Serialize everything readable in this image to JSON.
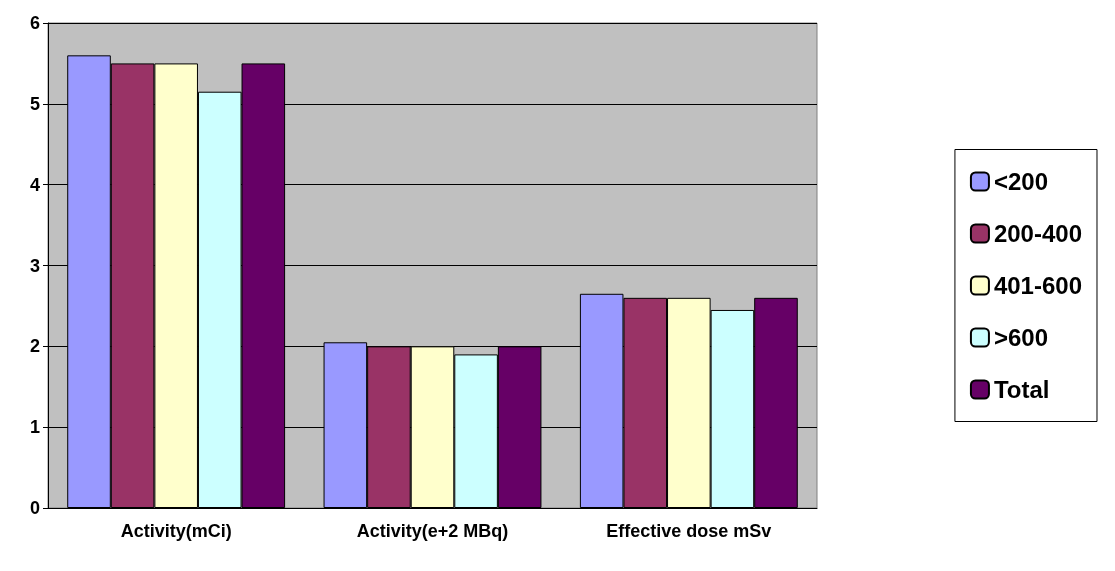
{
  "chart_data": {
    "type": "bar",
    "categories": [
      "Activity(mCi)",
      "Activity(e+2 MBq)",
      "Effective dose mSv"
    ],
    "series": [
      {
        "name": "<200",
        "color": "#9999ff",
        "values": [
          5.6,
          2.05,
          2.65
        ]
      },
      {
        "name": "200-400",
        "color": "#993366",
        "values": [
          5.5,
          2.0,
          2.6
        ]
      },
      {
        "name": "401-600",
        "color": "#ffffcc",
        "values": [
          5.5,
          2.0,
          2.6
        ]
      },
      {
        "name": ">600",
        "color": "#ccffff",
        "values": [
          5.15,
          1.9,
          2.45
        ]
      },
      {
        "name": "Total",
        "color": "#660066",
        "values": [
          5.5,
          2.0,
          2.6
        ]
      }
    ],
    "ylim": [
      0,
      6
    ],
    "yticks": [
      0,
      1,
      2,
      3,
      4,
      5,
      6
    ],
    "grid": "y",
    "legend": "right"
  }
}
